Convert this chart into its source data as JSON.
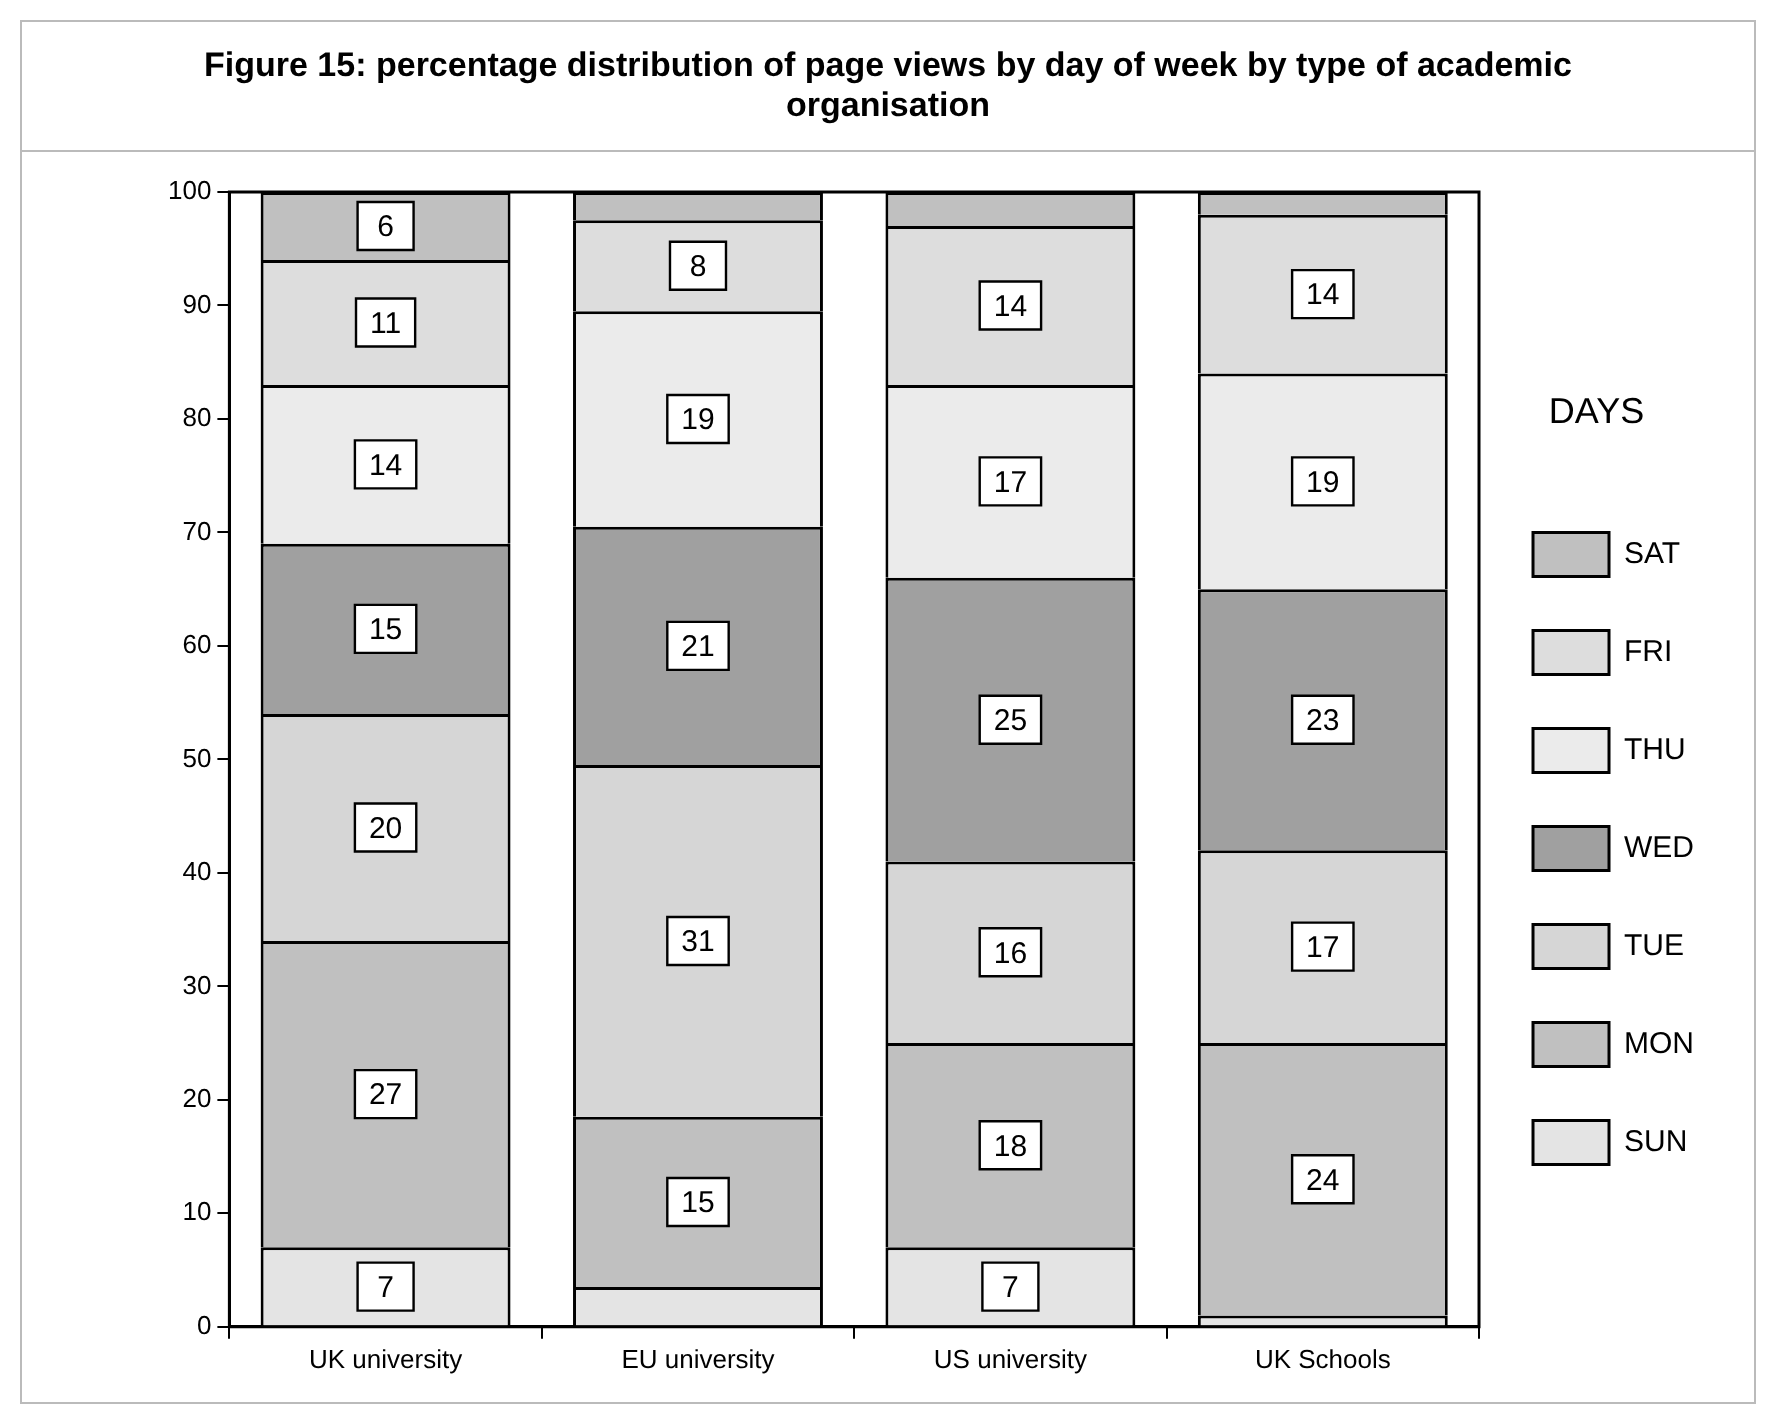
{
  "chart_data": {
    "type": "bar",
    "stacked": true,
    "title": "Figure 15: percentage distribution of page views by day of week by type of academic organisation",
    "legend_title": "DAYS",
    "legend": "right",
    "grid": false,
    "categories": [
      "UK university",
      "EU university",
      "US university",
      "UK Schools"
    ],
    "ylim": [
      0,
      100
    ],
    "yticks": [
      0,
      10,
      20,
      30,
      40,
      50,
      60,
      70,
      80,
      90,
      100
    ],
    "series": [
      {
        "name": "SUN",
        "color": "#e4e4e4",
        "values": [
          7,
          3.5,
          7,
          1
        ],
        "value_labels": [
          "7",
          null,
          "7",
          null
        ]
      },
      {
        "name": "MON",
        "color": "#c0c0c0",
        "values": [
          27,
          15,
          18,
          24
        ],
        "value_labels": [
          "27",
          "15",
          "18",
          "24"
        ]
      },
      {
        "name": "TUE",
        "color": "#d6d6d6",
        "values": [
          20,
          31,
          16,
          17
        ],
        "value_labels": [
          "20",
          "31",
          "16",
          "17"
        ]
      },
      {
        "name": "WED",
        "color": "#a0a0a0",
        "values": [
          15,
          21,
          25,
          23
        ],
        "value_labels": [
          "15",
          "21",
          "25",
          "23"
        ]
      },
      {
        "name": "THU",
        "color": "#ebebeb",
        "values": [
          14,
          19,
          17,
          19
        ],
        "value_labels": [
          "14",
          "19",
          "17",
          "19"
        ]
      },
      {
        "name": "FRI",
        "color": "#dddddd",
        "values": [
          11,
          8,
          14,
          14
        ],
        "value_labels": [
          "11",
          "8",
          "14",
          "14"
        ]
      },
      {
        "name": "SAT",
        "color": "#c0c0c0",
        "values": [
          6,
          2.5,
          3,
          2
        ],
        "value_labels": [
          "6",
          null,
          null,
          null
        ]
      }
    ]
  }
}
